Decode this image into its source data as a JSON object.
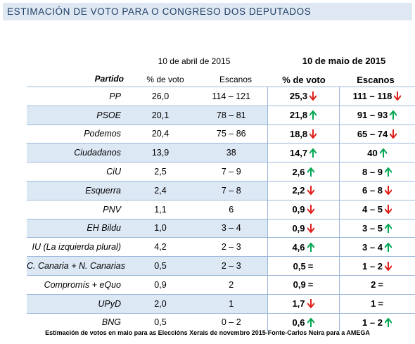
{
  "title": "ESTIMACIÓN DE VOTO PARA O CONGRESO DOS DEPUTADOS",
  "header": {
    "date_old": "10 de abril de 2015",
    "date_new": "10 de maio de 2015",
    "col_party": "Partido",
    "col_vote_old": "% de voto",
    "col_seats_old": "Escanos",
    "col_vote_new": "% de voto",
    "col_seats_new": "Escanos"
  },
  "colors": {
    "up": "#00a651",
    "down": "#e0201b",
    "shade": "#dde8f5",
    "title_bg": "#dfe7f3"
  },
  "rows": [
    {
      "party": "PP",
      "vote_old": "26,0",
      "seats_old": "114 – 121",
      "vote_new": "25,3",
      "vote_trend": "down",
      "seats_new": "111 – 118",
      "seats_trend": "down"
    },
    {
      "party": "PSOE",
      "vote_old": "20,1",
      "seats_old": "78 – 81",
      "vote_new": "21,8",
      "vote_trend": "up",
      "seats_new": "91 – 93",
      "seats_trend": "up"
    },
    {
      "party": "Podemos",
      "vote_old": "20,4",
      "seats_old": "75 – 86",
      "vote_new": "18,8",
      "vote_trend": "down",
      "seats_new": "65 – 74",
      "seats_trend": "down"
    },
    {
      "party": "Ciudadanos",
      "vote_old": "13,9",
      "seats_old": "38",
      "vote_new": "14,7",
      "vote_trend": "up",
      "seats_new": "40",
      "seats_trend": "up"
    },
    {
      "party": "CiU",
      "vote_old": "2,5",
      "seats_old": "7 – 9",
      "vote_new": "2,6",
      "vote_trend": "up",
      "seats_new": "8 – 9",
      "seats_trend": "up"
    },
    {
      "party": "Esquerra",
      "vote_old": "2,4",
      "seats_old": "7 – 8",
      "vote_new": "2,2",
      "vote_trend": "down",
      "seats_new": "6 – 8",
      "seats_trend": "down"
    },
    {
      "party": "PNV",
      "vote_old": "1,1",
      "seats_old": "6",
      "vote_new": "0,9",
      "vote_trend": "down",
      "seats_new": "4 – 5",
      "seats_trend": "down"
    },
    {
      "party": "EH Bildu",
      "vote_old": "1,0",
      "seats_old": "3 – 4",
      "vote_new": "0,9",
      "vote_trend": "down",
      "seats_new": "3 – 5",
      "seats_trend": "up"
    },
    {
      "party": "IU (La izquierda plural)",
      "vote_old": "4,2",
      "seats_old": "2 – 3",
      "vote_new": "4,6",
      "vote_trend": "up",
      "seats_new": "3 – 4",
      "seats_trend": "up"
    },
    {
      "party": "C. Canaria + N. Canarias",
      "vote_old": "0,5",
      "seats_old": "2 – 3",
      "vote_new": "0,5",
      "vote_trend": "equal",
      "seats_new": "1 – 2",
      "seats_trend": "down"
    },
    {
      "party": "Compromís + eQuo",
      "vote_old": "0,9",
      "seats_old": "2",
      "vote_new": "0,9",
      "vote_trend": "equal",
      "seats_new": "2",
      "seats_trend": "equal"
    },
    {
      "party": "UPyD",
      "vote_old": "2,0",
      "seats_old": "1",
      "vote_new": "1,7",
      "vote_trend": "down",
      "seats_new": "1",
      "seats_trend": "equal"
    },
    {
      "party": "BNG",
      "vote_old": "0,5",
      "seats_old": "0 – 2",
      "vote_new": "0,6",
      "vote_trend": "up",
      "seats_new": "1 – 2",
      "seats_trend": "up"
    }
  ],
  "caption": "Estimación de votos en maio para as Eleccións Xerais de novembro 2015-Fonte-Carlos Neira para a AMEGA"
}
